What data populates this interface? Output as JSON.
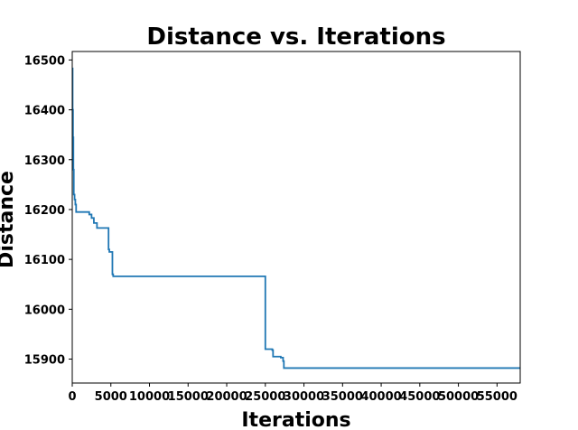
{
  "chart_data": {
    "type": "line",
    "title": "Distance vs. Iterations",
    "xlabel": "Iterations",
    "ylabel": "Distance",
    "xlim": [
      0,
      58000
    ],
    "ylim": [
      15852,
      16517
    ],
    "x_ticks": [
      0,
      5000,
      10000,
      15000,
      20000,
      25000,
      30000,
      35000,
      40000,
      45000,
      50000,
      55000
    ],
    "x_tick_labels": [
      "0",
      "5000",
      "10000",
      "15000",
      "20000",
      "25000",
      "30000",
      "35000",
      "40000",
      "45000",
      "50000",
      "55000"
    ],
    "y_ticks": [
      15900,
      16000,
      16100,
      16200,
      16300,
      16400,
      16500
    ],
    "y_tick_labels": [
      "15900",
      "16000",
      "16100",
      "16200",
      "16300",
      "16400",
      "16500"
    ],
    "grid": false,
    "series": [
      {
        "color": "#1f77b4",
        "step": true,
        "x": [
          0,
          50,
          100,
          150,
          200,
          300,
          400,
          500,
          2200,
          2500,
          2800,
          3200,
          4700,
          4800,
          5200,
          5300,
          5600,
          25000,
          25900,
          26000,
          27000,
          27300,
          27400,
          58000
        ],
        "y": [
          16483,
          16400,
          16345,
          16280,
          16230,
          16220,
          16210,
          16195,
          16190,
          16183,
          16173,
          16163,
          16120,
          16115,
          16070,
          16066,
          16066,
          15920,
          15918,
          15905,
          15903,
          15896,
          15882,
          15882
        ]
      }
    ]
  }
}
